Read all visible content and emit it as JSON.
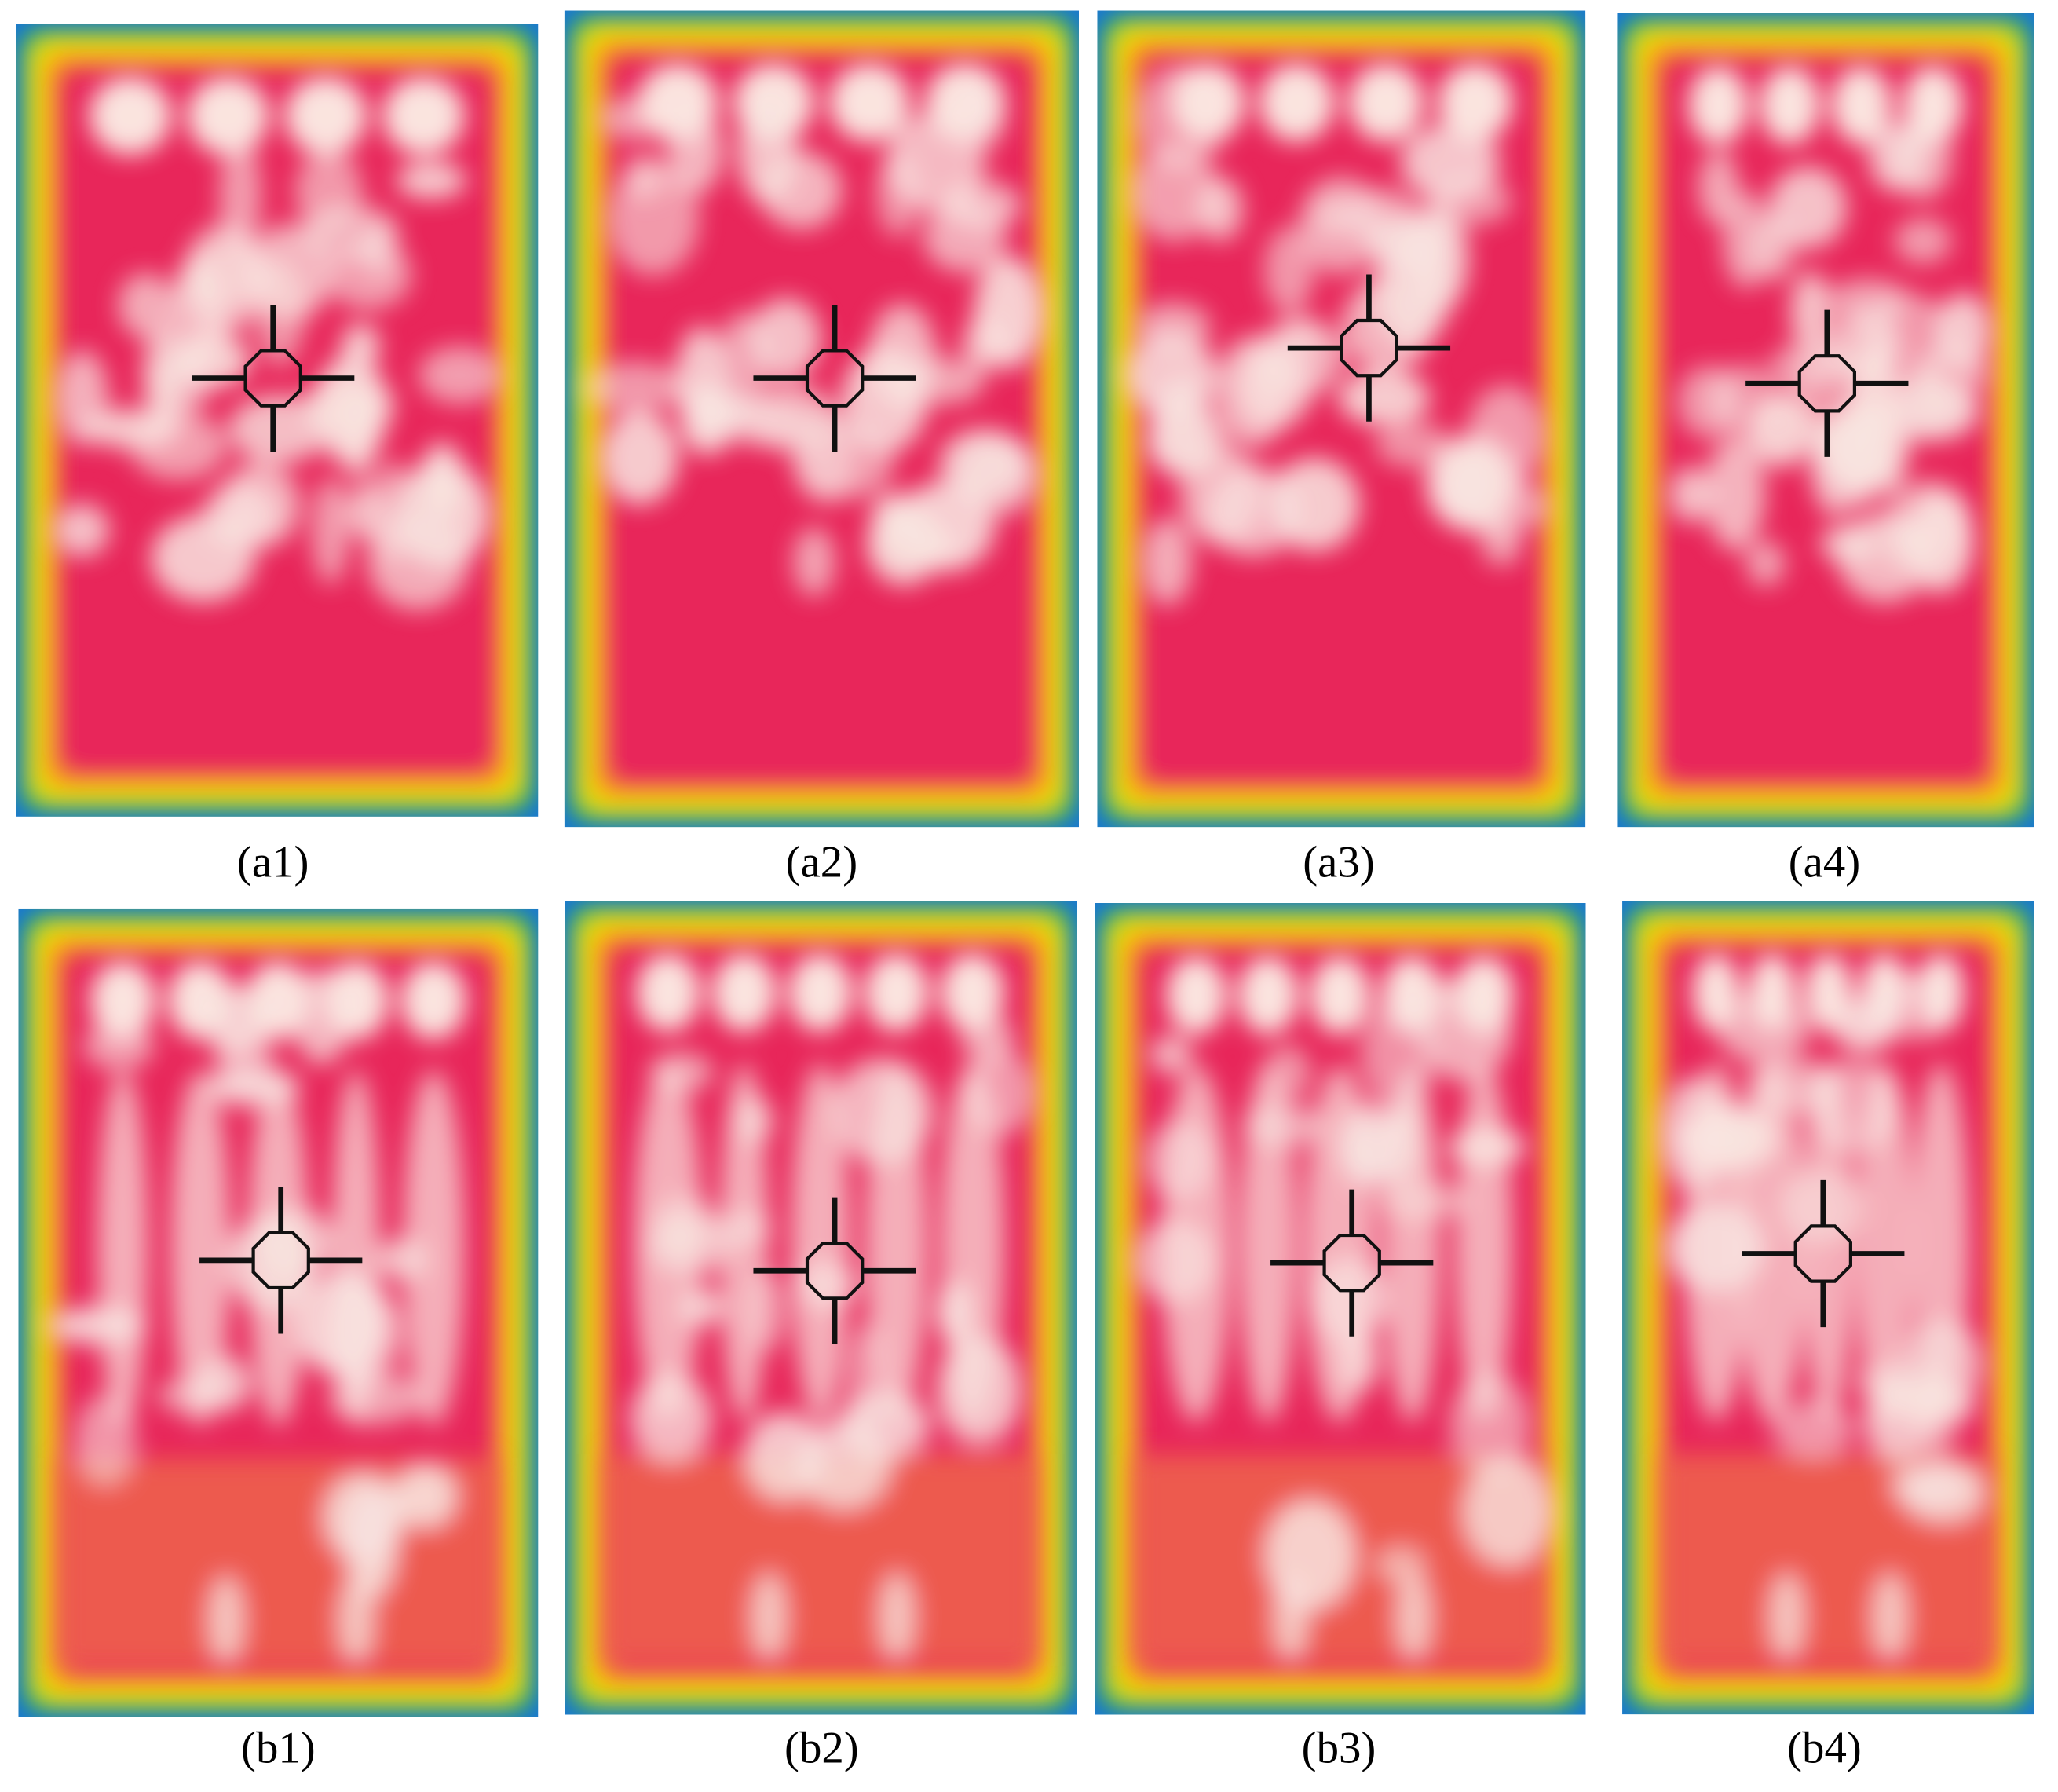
{
  "panels": [
    {
      "label": "(a1)"
    },
    {
      "label": "(a2)"
    },
    {
      "label": "(a3)"
    },
    {
      "label": "(a4)"
    },
    {
      "label": "(b1)"
    },
    {
      "label": "(b2)"
    },
    {
      "label": "(b3)"
    },
    {
      "label": "(b4)"
    }
  ]
}
